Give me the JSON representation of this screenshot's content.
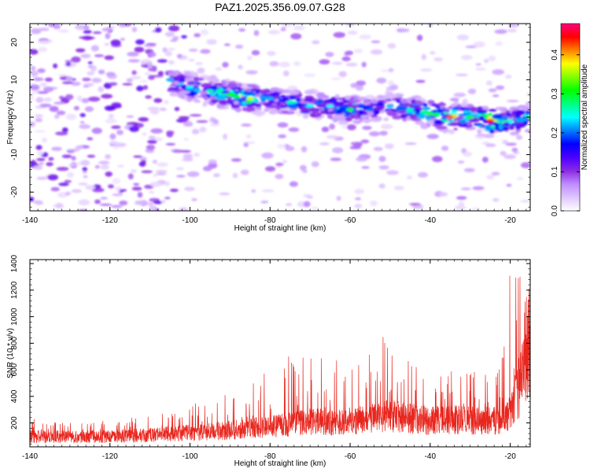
{
  "title": "PAZ1.2025.356.09.07.G28",
  "chart_data": [
    {
      "type": "heatmap",
      "xlabel": "Height of straight line (km)",
      "ylabel": "Frequency (Hz)",
      "xlim": [
        -140,
        -15
      ],
      "ylim": [
        -25,
        25
      ],
      "x_ticks": [
        -140,
        -120,
        -100,
        -80,
        -60,
        -40,
        -20
      ],
      "y_ticks": [
        -20,
        -10,
        0,
        10,
        20
      ],
      "colorbar": {
        "label": "Normalized spectral amplitude",
        "range": [
          0,
          0.48
        ],
        "ticks": [
          0.0,
          0.1,
          0.2,
          0.3,
          0.4
        ],
        "colors": [
          "#ffffff",
          "#e0c6ff",
          "#c08cff",
          "#8a2be2",
          "#4b00ff",
          "#0000ff",
          "#0080ff",
          "#00ffff",
          "#00ff80",
          "#00ff00",
          "#80ff00",
          "#ffff00",
          "#ff8000",
          "#ff0000",
          "#ff0080"
        ]
      },
      "ridge": {
        "x": [
          -105,
          -100,
          -95,
          -90,
          -85,
          -80,
          -75,
          -70,
          -65,
          -60,
          -55,
          -50,
          -45,
          -40,
          -35,
          -30,
          -25,
          -20,
          -15
        ],
        "freq": [
          10,
          8,
          7,
          6,
          5,
          5,
          4,
          3,
          3,
          2,
          2,
          3,
          2,
          1,
          0,
          0,
          -1,
          -1,
          0
        ],
        "peak_amplitude": [
          0.22,
          0.24,
          0.26,
          0.3,
          0.36,
          0.22,
          0.26,
          0.24,
          0.24,
          0.3,
          0.2,
          0.22,
          0.26,
          0.3,
          0.42,
          0.3,
          0.46,
          0.25,
          0.3
        ]
      }
    },
    {
      "type": "line",
      "xlabel": "Height of straight line (km)",
      "ylabel": "SNR (10 * v/v)",
      "xlim": [
        -140,
        -15
      ],
      "ylim": [
        20,
        1430
      ],
      "x_ticks": [
        -140,
        -120,
        -100,
        -80,
        -60,
        -40,
        -20
      ],
      "y_ticks": [
        200,
        400,
        600,
        800,
        1000,
        1200,
        1400
      ],
      "line_color": "#e8261e",
      "envelope": {
        "x": [
          -140,
          -130,
          -120,
          -110,
          -100,
          -90,
          -85,
          -80,
          -75,
          -70,
          -65,
          -60,
          -55,
          -50,
          -45,
          -40,
          -35,
          -30,
          -25,
          -22,
          -20,
          -18,
          -16,
          -15
        ],
        "baseline": [
          110,
          105,
          110,
          120,
          140,
          160,
          180,
          190,
          210,
          230,
          230,
          240,
          250,
          280,
          260,
          240,
          250,
          240,
          240,
          250,
          300,
          500,
          700,
          900
        ],
        "upper": [
          230,
          200,
          220,
          250,
          330,
          420,
          520,
          600,
          680,
          750,
          680,
          620,
          700,
          880,
          700,
          580,
          560,
          600,
          560,
          720,
          1300,
          1450,
          1350,
          1300
        ]
      }
    }
  ]
}
